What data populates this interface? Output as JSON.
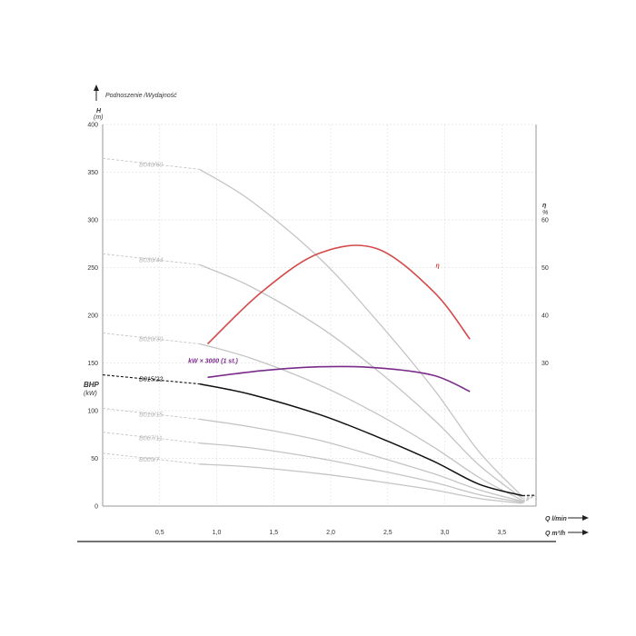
{
  "chart_data": {
    "type": "line",
    "title": "Podnoszenie /Wydajność",
    "left_axis": {
      "label": "H",
      "unit": "(m)",
      "ticks": [
        "0",
        "50",
        "100",
        "150",
        "200",
        "250",
        "300",
        "350",
        "400"
      ],
      "ylim": [
        0,
        400
      ]
    },
    "bhp_axis": {
      "label": "BHP",
      "unit": "(kW)"
    },
    "right_axis": {
      "label": "η",
      "unit": "%",
      "ticks": [
        "30",
        "40",
        "50",
        "60"
      ],
      "ylim": [
        0,
        80
      ]
    },
    "x_axis_top": {
      "label": "Q l/min"
    },
    "x_axis_bottom": {
      "label": "Q m³/h",
      "ticks": [
        "0,5",
        "1,0",
        "1,5",
        "2,0",
        "2,5",
        "3,0",
        "3,5"
      ],
      "xlim": [
        0,
        3.8
      ]
    },
    "grid": true,
    "series": [
      {
        "name": "B040/60",
        "color": "#c4c4c4",
        "x": [
          0.85,
          1.3,
          1.9,
          2.4,
          2.9,
          3.3,
          3.68
        ],
        "y": [
          353,
          320,
          260,
          195,
          123,
          57,
          10
        ]
      },
      {
        "name": "B030/44",
        "color": "#c4c4c4",
        "x": [
          0.85,
          1.3,
          1.9,
          2.4,
          2.9,
          3.3,
          3.68
        ],
        "y": [
          253,
          230,
          188,
          143,
          91,
          43,
          8
        ]
      },
      {
        "name": "B020/30",
        "color": "#c4c4c4",
        "x": [
          0.85,
          1.3,
          1.9,
          2.4,
          2.9,
          3.3,
          3.68
        ],
        "y": [
          170,
          155,
          127,
          97,
          62,
          30,
          6
        ]
      },
      {
        "name": "B015/22",
        "color": "#111111",
        "x": [
          0.85,
          1.3,
          1.9,
          2.4,
          2.9,
          3.3,
          3.68
        ],
        "y": [
          128,
          117,
          96,
          73,
          47,
          23,
          11
        ]
      },
      {
        "name": "B010/15",
        "color": "#c4c4c4",
        "x": [
          0.85,
          1.3,
          1.9,
          2.4,
          2.9,
          3.3,
          3.68
        ],
        "y": [
          91,
          83,
          69,
          52,
          34,
          17,
          5
        ]
      },
      {
        "name": "B007/11",
        "color": "#c4c4c4",
        "x": [
          0.85,
          1.3,
          1.9,
          2.4,
          2.9,
          3.3,
          3.68
        ],
        "y": [
          66,
          61,
          50,
          38,
          25,
          12,
          4
        ]
      },
      {
        "name": "B005/7",
        "color": "#c4c4c4",
        "x": [
          0.85,
          1.3,
          1.9,
          2.4,
          2.9,
          3.3,
          3.68
        ],
        "y": [
          44,
          41,
          34,
          26,
          17,
          8,
          3
        ]
      },
      {
        "name": "η",
        "color": "#d44a4a",
        "x": [
          0.92,
          1.4,
          1.9,
          2.4,
          2.9,
          3.22
        ],
        "y": [
          34,
          45,
          53,
          54,
          45,
          35
        ]
      },
      {
        "name": "kW × 3000 (1 st.)",
        "color": "#7a2a8a",
        "x": [
          0.92,
          1.4,
          1.9,
          2.4,
          2.9,
          3.22
        ],
        "y": [
          135,
          142,
          146,
          145,
          137,
          120
        ]
      }
    ]
  }
}
